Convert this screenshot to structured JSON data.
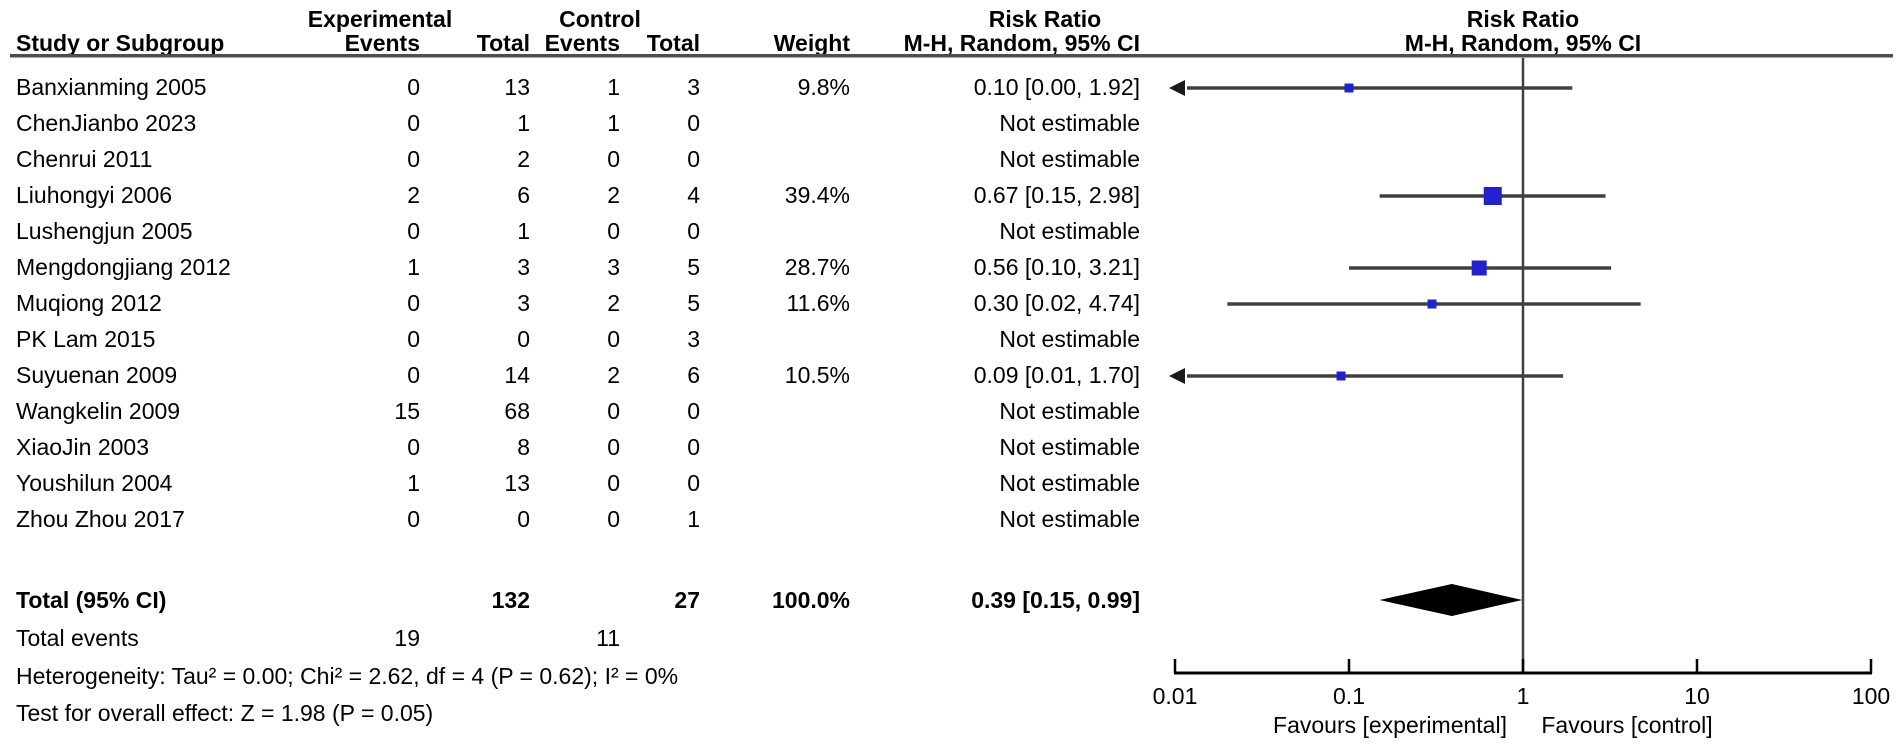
{
  "header": {
    "col_study": "Study or Subgroup",
    "group_experimental": "Experimental",
    "group_control": "Control",
    "col_exp_events": "Events",
    "col_exp_total": "Total",
    "col_ctrl_events": "Events",
    "col_ctrl_total": "Total",
    "col_weight": "Weight",
    "effect_title_left": "Risk Ratio",
    "effect_method_left": "M-H, Random, 95% CI",
    "effect_title_right": "Risk Ratio",
    "effect_method_right": "M-H, Random, 95% CI"
  },
  "totals": {
    "label": "Total (95% CI)",
    "exp_total": "132",
    "ctrl_total": "27",
    "weight": "100.0%",
    "effect": "0.39 [0.15, 0.99]",
    "total_events_label": "Total events",
    "exp_events": "19",
    "ctrl_events": "11"
  },
  "footnotes": {
    "heterogeneity": "Heterogeneity: Tau² = 0.00; Chi² = 2.62, df = 4 (P = 0.62); I² = 0%",
    "overall_effect": "Test for overall effect: Z = 1.98 (P = 0.05)"
  },
  "colors": {
    "marker_blue": "#2222CC",
    "ci_line": "#404040",
    "diamond": "#000000",
    "rule": "#4d4d4d",
    "axis": "#000000"
  },
  "chart_data": {
    "type": "forest",
    "effect_measure": "Risk Ratio",
    "method": "M-H, Random, 95% CI",
    "x_axis": {
      "scale": "log10",
      "ticks": [
        0.01,
        0.1,
        1,
        10,
        100
      ],
      "tick_labels": [
        "0.01",
        "0.1",
        "1",
        "10",
        "100"
      ],
      "favours_left": "Favours [experimental]",
      "favours_right": "Favours [control]"
    },
    "studies": [
      {
        "name": "Banxianming 2005",
        "exp_events": "0",
        "exp_total": "13",
        "ctrl_events": "1",
        "ctrl_total": "3",
        "weight": "9.8%",
        "weight_pct": 9.8,
        "effect": "0.10 [0.00, 1.92]",
        "estimable": true,
        "rr": 0.1,
        "low": 0.0,
        "high": 1.92,
        "clip_low": true
      },
      {
        "name": "ChenJianbo 2023",
        "exp_events": "0",
        "exp_total": "1",
        "ctrl_events": "1",
        "ctrl_total": "0",
        "weight": "",
        "effect": "Not estimable",
        "estimable": false
      },
      {
        "name": "Chenrui 2011",
        "exp_events": "0",
        "exp_total": "2",
        "ctrl_events": "0",
        "ctrl_total": "0",
        "weight": "",
        "effect": "Not estimable",
        "estimable": false
      },
      {
        "name": "Liuhongyi 2006",
        "exp_events": "2",
        "exp_total": "6",
        "ctrl_events": "2",
        "ctrl_total": "4",
        "weight": "39.4%",
        "weight_pct": 39.4,
        "effect": "0.67 [0.15, 2.98]",
        "estimable": true,
        "rr": 0.67,
        "low": 0.15,
        "high": 2.98,
        "clip_low": false
      },
      {
        "name": "Lushengjun 2005",
        "exp_events": "0",
        "exp_total": "1",
        "ctrl_events": "0",
        "ctrl_total": "0",
        "weight": "",
        "effect": "Not estimable",
        "estimable": false
      },
      {
        "name": "Mengdongjiang 2012",
        "exp_events": "1",
        "exp_total": "3",
        "ctrl_events": "3",
        "ctrl_total": "5",
        "weight": "28.7%",
        "weight_pct": 28.7,
        "effect": "0.56 [0.10, 3.21]",
        "estimable": true,
        "rr": 0.56,
        "low": 0.1,
        "high": 3.21,
        "clip_low": false
      },
      {
        "name": "Muqiong 2012",
        "exp_events": "0",
        "exp_total": "3",
        "ctrl_events": "2",
        "ctrl_total": "5",
        "weight": "11.6%",
        "weight_pct": 11.6,
        "effect": "0.30 [0.02, 4.74]",
        "estimable": true,
        "rr": 0.3,
        "low": 0.02,
        "high": 4.74,
        "clip_low": false
      },
      {
        "name": "PK Lam 2015",
        "exp_events": "0",
        "exp_total": "0",
        "ctrl_events": "0",
        "ctrl_total": "3",
        "weight": "",
        "effect": "Not estimable",
        "estimable": false
      },
      {
        "name": "Suyuenan 2009",
        "exp_events": "0",
        "exp_total": "14",
        "ctrl_events": "2",
        "ctrl_total": "6",
        "weight": "10.5%",
        "weight_pct": 10.5,
        "effect": "0.09 [0.01, 1.70]",
        "estimable": true,
        "rr": 0.09,
        "low": 0.01,
        "high": 1.7,
        "clip_low": true
      },
      {
        "name": "Wangkelin 2009",
        "exp_events": "15",
        "exp_total": "68",
        "ctrl_events": "0",
        "ctrl_total": "0",
        "weight": "",
        "effect": "Not estimable",
        "estimable": false
      },
      {
        "name": "XiaoJin 2003",
        "exp_events": "0",
        "exp_total": "8",
        "ctrl_events": "0",
        "ctrl_total": "0",
        "weight": "",
        "effect": "Not estimable",
        "estimable": false
      },
      {
        "name": "Youshilun 2004",
        "exp_events": "1",
        "exp_total": "13",
        "ctrl_events": "0",
        "ctrl_total": "0",
        "weight": "",
        "effect": "Not estimable",
        "estimable": false
      },
      {
        "name": "Zhou Zhou 2017",
        "exp_events": "0",
        "exp_total": "0",
        "ctrl_events": "0",
        "ctrl_total": "1",
        "weight": "",
        "effect": "Not estimable",
        "estimable": false
      }
    ],
    "total": {
      "rr": 0.39,
      "low": 0.15,
      "high": 0.99
    }
  }
}
